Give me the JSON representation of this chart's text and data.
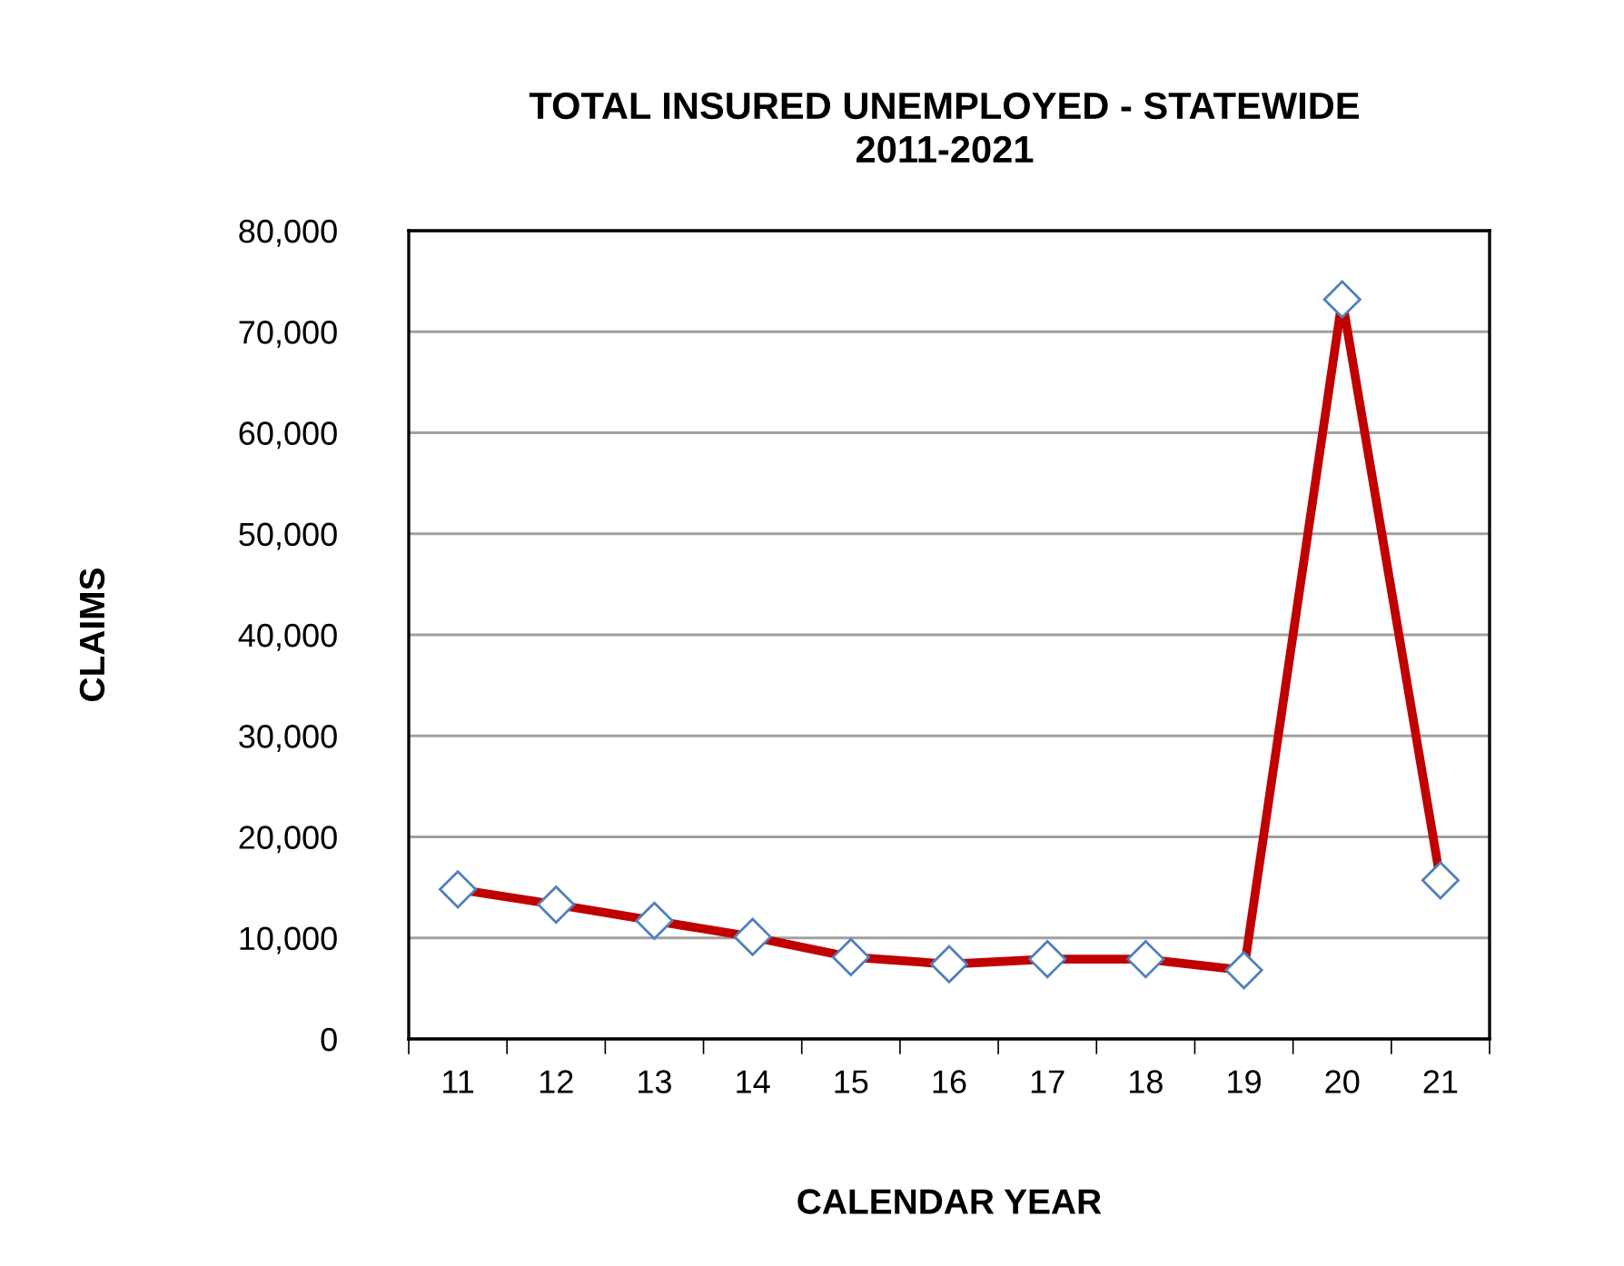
{
  "chart_data": {
    "type": "line",
    "title": "TOTAL INSURED UNEMPLOYED - STATEWIDE\n2011-2021",
    "xlabel": "CALENDAR YEAR",
    "ylabel": "CLAIMS",
    "categories": [
      "11",
      "12",
      "13",
      "14",
      "15",
      "16",
      "17",
      "18",
      "19",
      "20",
      "21"
    ],
    "series": [
      {
        "color": "#c00000",
        "values": [
          14800,
          13300,
          11700,
          10100,
          8100,
          7400,
          7900,
          7900,
          6800,
          73200,
          15700
        ]
      }
    ],
    "ylim": [
      0,
      80000
    ],
    "yticks": [
      {
        "value": 0,
        "label": "0"
      },
      {
        "value": 10000,
        "label": "10,000"
      },
      {
        "value": 20000,
        "label": "20,000"
      },
      {
        "value": 30000,
        "label": "30,000"
      },
      {
        "value": 40000,
        "label": "40,000"
      },
      {
        "value": 50000,
        "label": "50,000"
      },
      {
        "value": 60000,
        "label": "60,000"
      },
      {
        "value": 70000,
        "label": "70,000"
      },
      {
        "value": 80000,
        "label": "80,000"
      }
    ],
    "grid": "y",
    "marker": "diamond",
    "line_style": "solid",
    "legend": false
  }
}
